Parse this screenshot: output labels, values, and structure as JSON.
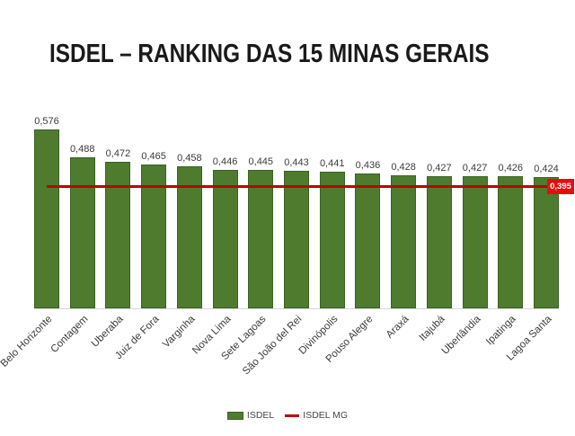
{
  "title": "ISDEL – RANKING DAS 15 MINAS GERAIS",
  "chart_data": {
    "type": "bar",
    "title": "ISDEL – RANKING DAS 15 MINAS GERAIS",
    "categories": [
      "Belo Horizonte",
      "Contagem",
      "Uberaba",
      "Juiz de Fora",
      "Varginha",
      "Nova Lima",
      "Sete Lagoas",
      "São João del Rei",
      "Divinópolis",
      "Pouso Alegre",
      "Araxá",
      "Itajubá",
      "Uberlândia",
      "Ipatinga",
      "Lagoa Santa"
    ],
    "values": [
      0.576,
      0.488,
      0.472,
      0.465,
      0.458,
      0.446,
      0.445,
      0.443,
      0.441,
      0.436,
      0.428,
      0.427,
      0.427,
      0.426,
      0.424
    ],
    "value_labels": [
      "0,576",
      "0,488",
      "0,472",
      "0,465",
      "0,458",
      "0,446",
      "0,445",
      "0,443",
      "0,441",
      "0,436",
      "0,428",
      "0,427",
      "0,427",
      "0,426",
      "0,424"
    ],
    "reference_line": {
      "name": "ISDEL MG",
      "value": 0.395,
      "label": "0,395"
    },
    "legend": [
      {
        "label": "ISDEL",
        "type": "bar"
      },
      {
        "label": "ISDEL MG",
        "type": "line"
      }
    ],
    "legend_position": "bottom",
    "grid": false,
    "ylim": [
      0,
      0.6
    ],
    "xlabel": "",
    "ylabel": "",
    "bar_color": "#4e7b2e",
    "bar_border_color": "#3d6222",
    "line_color": "#c00000",
    "ref_label_bg": "#e20f0f",
    "ref_label_text_color": "#ffffff"
  }
}
